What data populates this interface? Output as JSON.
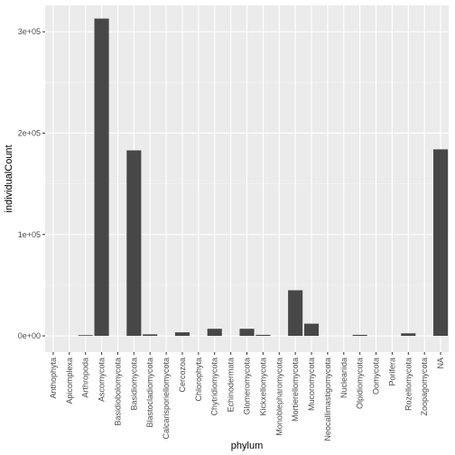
{
  "chart_data": {
    "type": "bar",
    "xlabel": "phylum",
    "ylabel": "individualCount",
    "ylim": [
      -16000,
      326000
    ],
    "y_ticks": [
      0,
      100000,
      200000,
      300000
    ],
    "y_tick_labels": [
      "0e+00",
      "1e+05",
      "2e+05",
      "3e+05"
    ],
    "grid": true,
    "categories": [
      "Anthophyta",
      "Apicomplexa",
      "Arthropoda",
      "Ascomycota",
      "Basidiobolomycota",
      "Basidiomycota",
      "Blastocladiomycota",
      "Calcarisporiellomycota",
      "Cercozoa",
      "Chlorophyta",
      "Chytridiomycota",
      "Echinodermata",
      "Glomeromycota",
      "Kickxellomycota",
      "Monoblepharomycota",
      "Mortierellomycota",
      "Mucoromycota",
      "Neocallimastigomycota",
      "Nucleariida",
      "Olpidiomycota",
      "Oomycota",
      "Porifera",
      "Rozellomycota",
      "Zoopagomycota",
      "NA"
    ],
    "values": [
      0,
      0,
      100,
      313000,
      0,
      183000,
      1500,
      0,
      3500,
      0,
      7000,
      0,
      7000,
      1000,
      0,
      45000,
      12000,
      0,
      0,
      1000,
      0,
      0,
      2500,
      0,
      184000
    ],
    "colors": {
      "panel": "#ebebeb",
      "grid_major": "#ffffff",
      "grid_minor": "#f5f5f5",
      "bar": "#474747",
      "tick": "#333333"
    }
  }
}
